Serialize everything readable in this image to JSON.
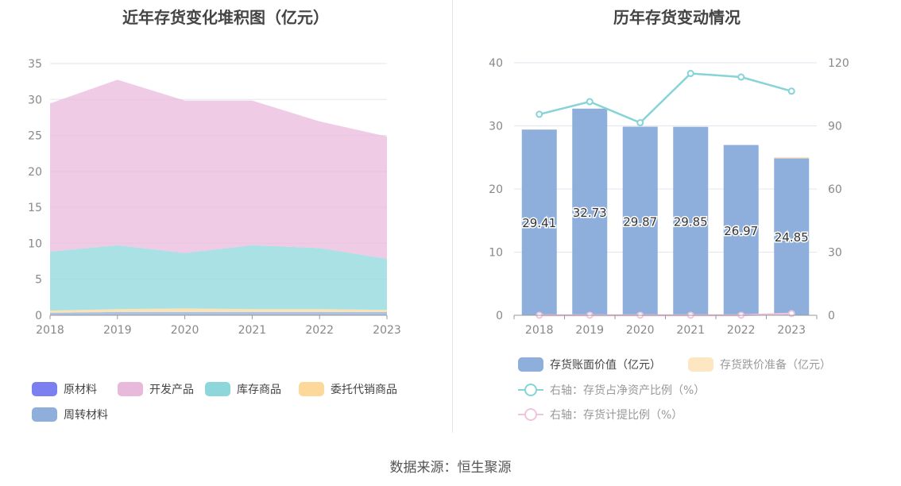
{
  "left": {
    "title": "近年存货变化堆积图（亿元）",
    "legend": [
      {
        "label": "原材料",
        "color": "#7b7ff0"
      },
      {
        "label": "开发产品",
        "color": "#e9b9dc"
      },
      {
        "label": "库存商品",
        "color": "#8dd7db"
      },
      {
        "label": "委托代销商品",
        "color": "#fcd99a"
      },
      {
        "label": "周转材料",
        "color": "#8eaedc"
      }
    ]
  },
  "right": {
    "title": "历年存货变动情况",
    "legend": [
      {
        "label": "存货账面价值（亿元）",
        "color": "#8eaedc"
      },
      {
        "label": "存货跌价准备（亿元）",
        "color": "#fde6c2"
      },
      {
        "label": "右轴：存货占净资产比例（%）",
        "color": "#86d3d8"
      },
      {
        "label": "右轴：存货计提比例（%）",
        "color": "#f0c4de"
      }
    ]
  },
  "source": "数据来源：恒生聚源",
  "chart_data": [
    {
      "type": "area",
      "title": "近年存货变化堆积图（亿元）",
      "stacked": true,
      "categories": [
        "2018",
        "2019",
        "2020",
        "2021",
        "2022",
        "2023"
      ],
      "ylim": [
        0,
        35
      ],
      "yticks": [
        0,
        5,
        10,
        15,
        20,
        25,
        30,
        35
      ],
      "grid": true,
      "legend_position": "bottom",
      "series": [
        {
          "name": "原材料",
          "color": "#7b7ff0",
          "values": [
            0.05,
            0.05,
            0.05,
            0.05,
            0.05,
            0.05
          ]
        },
        {
          "name": "周转材料",
          "color": "#8eaedc",
          "values": [
            0.3,
            0.4,
            0.4,
            0.4,
            0.4,
            0.4
          ]
        },
        {
          "name": "委托代销商品",
          "color": "#fcd99a",
          "values": [
            0.3,
            0.4,
            0.5,
            0.4,
            0.4,
            0.3
          ]
        },
        {
          "name": "库存商品",
          "color": "#8dd7db",
          "values": [
            8.2,
            8.9,
            7.7,
            8.9,
            8.5,
            7.1
          ]
        },
        {
          "name": "开发产品",
          "color": "#e9b9dc",
          "values": [
            20.6,
            23.0,
            21.2,
            20.1,
            17.6,
            17.0
          ]
        }
      ]
    },
    {
      "type": "bar",
      "title": "历年存货变动情况",
      "categories": [
        "2018",
        "2019",
        "2020",
        "2021",
        "2022",
        "2023"
      ],
      "ylim": [
        0,
        40
      ],
      "yticks": [
        0,
        10,
        20,
        30,
        40
      ],
      "y2lim": [
        0,
        120
      ],
      "y2ticks": [
        0,
        30,
        60,
        90,
        120
      ],
      "grid": true,
      "legend_position": "bottom",
      "series": [
        {
          "name": "存货账面价值（亿元）",
          "type": "bar",
          "axis": "left",
          "color": "#8eaedc",
          "values": [
            29.41,
            32.73,
            29.87,
            29.85,
            26.97,
            24.85
          ],
          "labels": [
            "29.41",
            "32.73",
            "29.87",
            "29.85",
            "26.97",
            "24.85"
          ]
        },
        {
          "name": "存货跌价准备（亿元）",
          "type": "bar",
          "axis": "left",
          "color": "#fde6c2",
          "values": [
            0,
            0,
            0,
            0,
            0,
            0.2
          ]
        },
        {
          "name": "右轴：存货占净资产比例（%）",
          "type": "line",
          "axis": "right",
          "color": "#86d3d8",
          "values": [
            95.5,
            101.5,
            91.5,
            114.9,
            113.2,
            106.5
          ]
        },
        {
          "name": "右轴：存货计提比例（%）",
          "type": "line",
          "axis": "right",
          "color": "#f0c4de",
          "values": [
            0,
            0,
            0,
            0,
            0,
            0.8
          ]
        }
      ]
    }
  ]
}
